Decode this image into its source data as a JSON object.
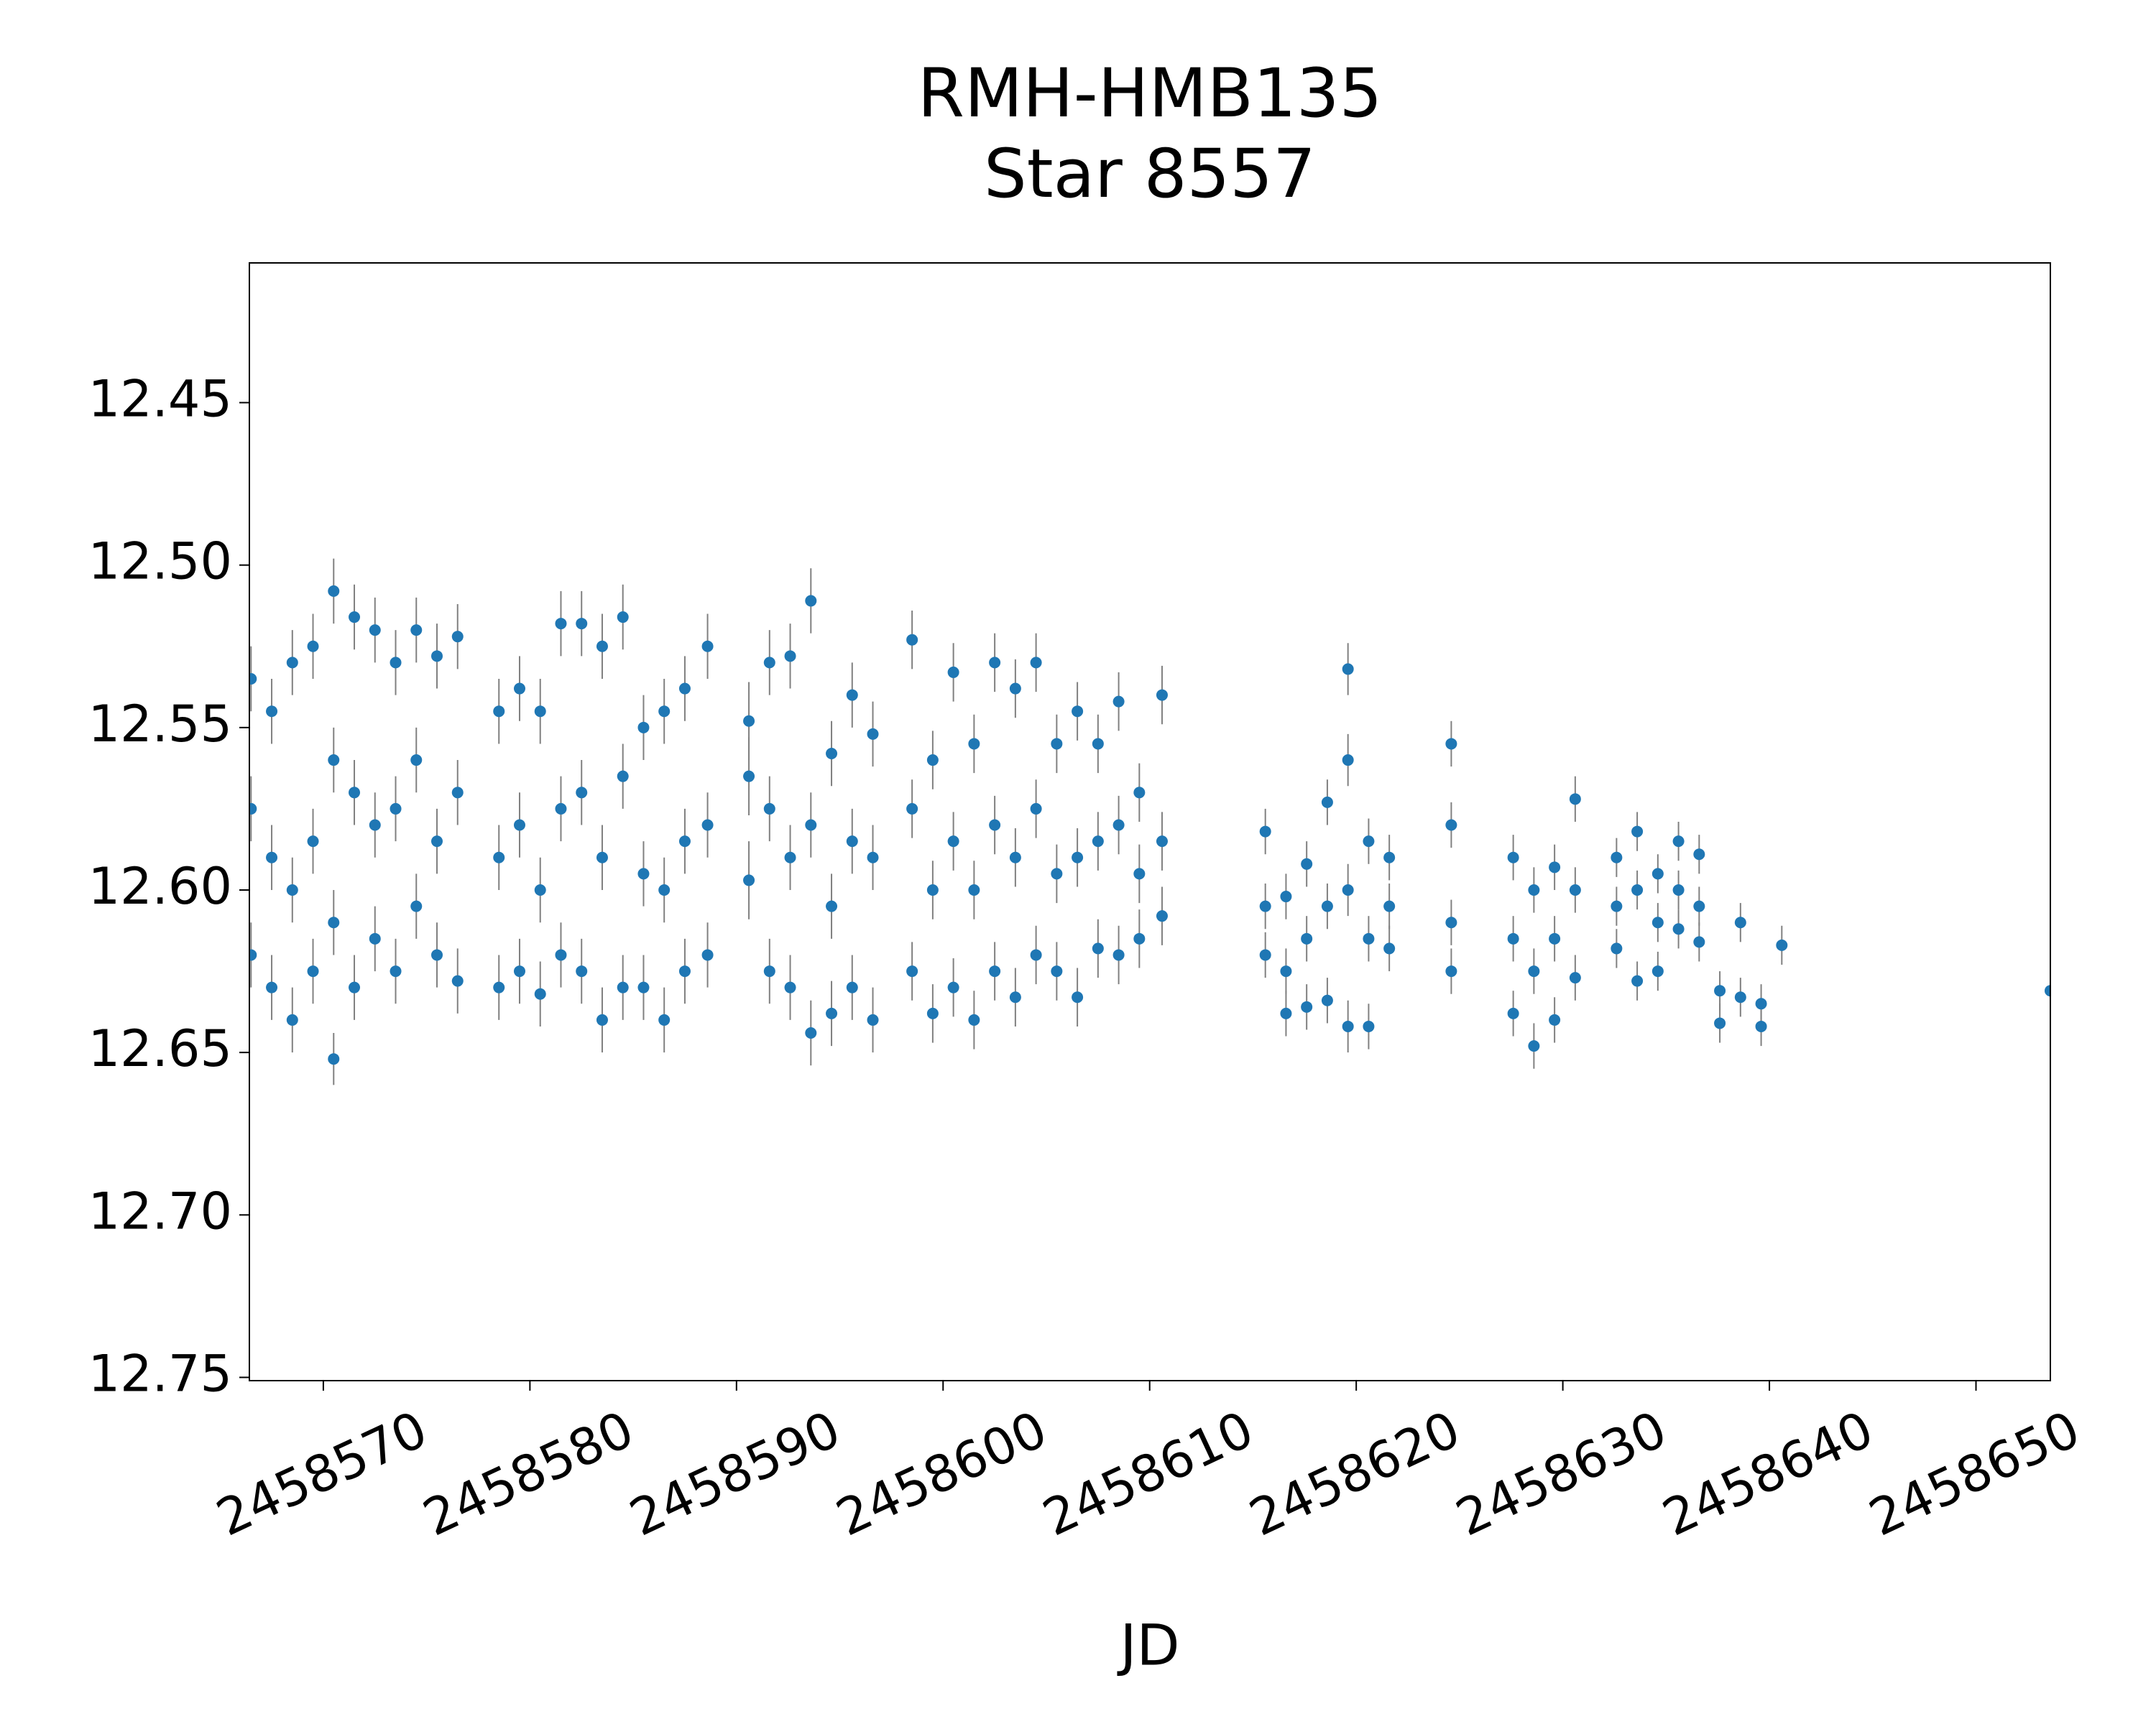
{
  "chart_data": {
    "type": "scatter",
    "title": "RMH-HMB135",
    "subtitle": "Star 8557",
    "x_label": "JD",
    "xlim": [
      2458566.42,
      2458653.6
    ],
    "xticks": [
      2458570,
      2458580,
      2458590,
      2458600,
      2458610,
      2458620,
      2458630,
      2458640,
      2458650
    ],
    "ylim": [
      12.751,
      12.407
    ],
    "yticks": [
      12.45,
      {
        "value": 12.5,
        "label": "12.50"
      },
      12.55,
      {
        "value": 12.6,
        "label": "12.60"
      },
      12.65,
      {
        "value": 12.7,
        "label": "12.70"
      },
      12.75
    ],
    "x": [
      2458566.5,
      2458566.5,
      2458566.5,
      2458567.5,
      2458567.5,
      2458567.5,
      2458568.5,
      2458568.5,
      2458568.5,
      2458569.5,
      2458569.5,
      2458569.5,
      2458570.5,
      2458570.5,
      2458570.5,
      2458570.5,
      2458571.5,
      2458571.5,
      2458571.5,
      2458572.5,
      2458572.5,
      2458572.5,
      2458573.5,
      2458573.5,
      2458573.5,
      2458574.5,
      2458574.5,
      2458574.5,
      2458575.5,
      2458575.5,
      2458575.5,
      2458576.5,
      2458576.5,
      2458576.5,
      2458578.5,
      2458578.5,
      2458578.5,
      2458579.5,
      2458579.5,
      2458579.5,
      2458580.5,
      2458580.5,
      2458580.5,
      2458581.5,
      2458581.5,
      2458581.5,
      2458582.5,
      2458582.5,
      2458582.5,
      2458583.5,
      2458583.5,
      2458583.5,
      2458584.5,
      2458584.5,
      2458584.5,
      2458585.5,
      2458585.5,
      2458585.5,
      2458586.5,
      2458586.5,
      2458586.5,
      2458587.5,
      2458587.5,
      2458587.5,
      2458588.6,
      2458588.6,
      2458588.6,
      2458590.6,
      2458590.6,
      2458590.6,
      2458591.6,
      2458591.6,
      2458591.6,
      2458592.6,
      2458592.6,
      2458592.6,
      2458593.6,
      2458593.6,
      2458593.6,
      2458594.6,
      2458594.6,
      2458594.6,
      2458595.6,
      2458595.6,
      2458595.6,
      2458596.6,
      2458596.6,
      2458596.6,
      2458598.5,
      2458598.5,
      2458598.5,
      2458599.5,
      2458599.5,
      2458599.5,
      2458600.5,
      2458600.5,
      2458600.5,
      2458601.5,
      2458601.5,
      2458601.5,
      2458602.5,
      2458602.5,
      2458602.5,
      2458603.5,
      2458603.5,
      2458603.5,
      2458604.5,
      2458604.5,
      2458604.5,
      2458605.5,
      2458605.5,
      2458605.5,
      2458606.5,
      2458606.5,
      2458606.5,
      2458607.5,
      2458607.5,
      2458607.5,
      2458608.5,
      2458608.5,
      2458608.5,
      2458609.5,
      2458609.5,
      2458609.5,
      2458610.6,
      2458610.6,
      2458610.6,
      2458615.6,
      2458615.6,
      2458615.6,
      2458616.6,
      2458616.6,
      2458616.6,
      2458617.6,
      2458617.6,
      2458617.6,
      2458618.6,
      2458618.6,
      2458618.6,
      2458619.6,
      2458619.6,
      2458619.6,
      2458619.6,
      2458620.6,
      2458620.6,
      2458620.6,
      2458621.6,
      2458621.6,
      2458621.6,
      2458624.6,
      2458624.6,
      2458624.6,
      2458624.6,
      2458627.6,
      2458627.6,
      2458627.6,
      2458628.6,
      2458628.6,
      2458628.6,
      2458629.6,
      2458629.6,
      2458629.6,
      2458630.6,
      2458630.6,
      2458630.6,
      2458632.6,
      2458632.6,
      2458632.6,
      2458633.6,
      2458633.6,
      2458633.6,
      2458634.6,
      2458634.6,
      2458634.6,
      2458635.6,
      2458635.6,
      2458635.6,
      2458636.6,
      2458636.6,
      2458636.6,
      2458637.6,
      2458637.6,
      2458638.6,
      2458638.6,
      2458639.6,
      2458639.6,
      2458640.6,
      2458653.6
    ],
    "series": [
      {
        "color": "#1f77b4",
        "errorbar_color": "#808080",
        "values": [
          12.535,
          12.575,
          12.62,
          12.545,
          12.59,
          12.63,
          12.53,
          12.6,
          12.64,
          12.525,
          12.585,
          12.625,
          12.508,
          12.56,
          12.61,
          12.652,
          12.516,
          12.57,
          12.63,
          12.52,
          12.58,
          12.615,
          12.53,
          12.575,
          12.625,
          12.52,
          12.56,
          12.605,
          12.528,
          12.585,
          12.62,
          12.522,
          12.57,
          12.628,
          12.545,
          12.59,
          12.63,
          12.538,
          12.58,
          12.625,
          12.545,
          12.6,
          12.632,
          12.518,
          12.575,
          12.62,
          12.518,
          12.57,
          12.625,
          12.525,
          12.59,
          12.64,
          12.516,
          12.565,
          12.63,
          12.55,
          12.595,
          12.63,
          12.545,
          12.6,
          12.64,
          12.538,
          12.585,
          12.625,
          12.525,
          12.58,
          12.62,
          12.548,
          12.565,
          12.597,
          12.53,
          12.575,
          12.625,
          12.528,
          12.59,
          12.63,
          12.511,
          12.58,
          12.644,
          12.558,
          12.605,
          12.638,
          12.54,
          12.585,
          12.63,
          12.552,
          12.59,
          12.64,
          12.523,
          12.575,
          12.625,
          12.56,
          12.6,
          12.638,
          12.533,
          12.585,
          12.63,
          12.555,
          12.6,
          12.64,
          12.53,
          12.58,
          12.625,
          12.538,
          12.59,
          12.633,
          12.53,
          12.575,
          12.62,
          12.555,
          12.595,
          12.625,
          12.545,
          12.59,
          12.633,
          12.555,
          12.585,
          12.618,
          12.542,
          12.58,
          12.62,
          12.57,
          12.595,
          12.615,
          12.54,
          12.585,
          12.608,
          12.582,
          12.605,
          12.62,
          12.602,
          12.625,
          12.638,
          12.592,
          12.615,
          12.636,
          12.573,
          12.605,
          12.634,
          12.532,
          12.56,
          12.6,
          12.642,
          12.585,
          12.615,
          12.642,
          12.59,
          12.605,
          12.618,
          12.555,
          12.58,
          12.61,
          12.625,
          12.59,
          12.615,
          12.638,
          12.6,
          12.625,
          12.648,
          12.593,
          12.615,
          12.64,
          12.572,
          12.6,
          12.627,
          12.59,
          12.605,
          12.618,
          12.582,
          12.6,
          12.628,
          12.595,
          12.61,
          12.625,
          12.585,
          12.6,
          12.612,
          12.589,
          12.605,
          12.616,
          12.631,
          12.641,
          12.61,
          12.633,
          12.635,
          12.642,
          12.617,
          12.631
        ],
        "errors": [
          0.01,
          0.01,
          0.01,
          0.01,
          0.01,
          0.01,
          0.01,
          0.01,
          0.01,
          0.01,
          0.01,
          0.01,
          0.01,
          0.01,
          0.01,
          0.008,
          0.01,
          0.01,
          0.01,
          0.01,
          0.01,
          0.01,
          0.01,
          0.01,
          0.01,
          0.01,
          0.01,
          0.01,
          0.01,
          0.01,
          0.01,
          0.01,
          0.01,
          0.01,
          0.01,
          0.01,
          0.01,
          0.01,
          0.01,
          0.01,
          0.01,
          0.01,
          0.01,
          0.01,
          0.01,
          0.01,
          0.01,
          0.01,
          0.01,
          0.01,
          0.01,
          0.01,
          0.01,
          0.01,
          0.01,
          0.01,
          0.01,
          0.01,
          0.01,
          0.01,
          0.01,
          0.01,
          0.01,
          0.01,
          0.01,
          0.01,
          0.01,
          0.012,
          0.012,
          0.012,
          0.01,
          0.01,
          0.01,
          0.01,
          0.01,
          0.01,
          0.01,
          0.01,
          0.01,
          0.01,
          0.01,
          0.01,
          0.01,
          0.01,
          0.01,
          0.01,
          0.01,
          0.01,
          0.009,
          0.009,
          0.009,
          0.009,
          0.009,
          0.009,
          0.009,
          0.009,
          0.009,
          0.009,
          0.009,
          0.009,
          0.009,
          0.009,
          0.009,
          0.009,
          0.009,
          0.009,
          0.009,
          0.009,
          0.009,
          0.009,
          0.009,
          0.009,
          0.009,
          0.009,
          0.009,
          0.009,
          0.009,
          0.009,
          0.009,
          0.009,
          0.009,
          0.009,
          0.009,
          0.009,
          0.009,
          0.009,
          0.009,
          0.007,
          0.007,
          0.007,
          0.007,
          0.007,
          0.007,
          0.007,
          0.007,
          0.007,
          0.007,
          0.007,
          0.007,
          0.008,
          0.008,
          0.008,
          0.008,
          0.007,
          0.007,
          0.007,
          0.007,
          0.007,
          0.007,
          0.007,
          0.007,
          0.007,
          0.007,
          0.007,
          0.007,
          0.007,
          0.007,
          0.007,
          0.007,
          0.007,
          0.007,
          0.007,
          0.007,
          0.007,
          0.007,
          0.006,
          0.006,
          0.006,
          0.006,
          0.006,
          0.006,
          0.006,
          0.006,
          0.006,
          0.006,
          0.006,
          0.006,
          0.006,
          0.006,
          0.006,
          0.006,
          0.006,
          0.006,
          0.006,
          0.006,
          0.006,
          0.006,
          0.006
        ]
      }
    ]
  }
}
